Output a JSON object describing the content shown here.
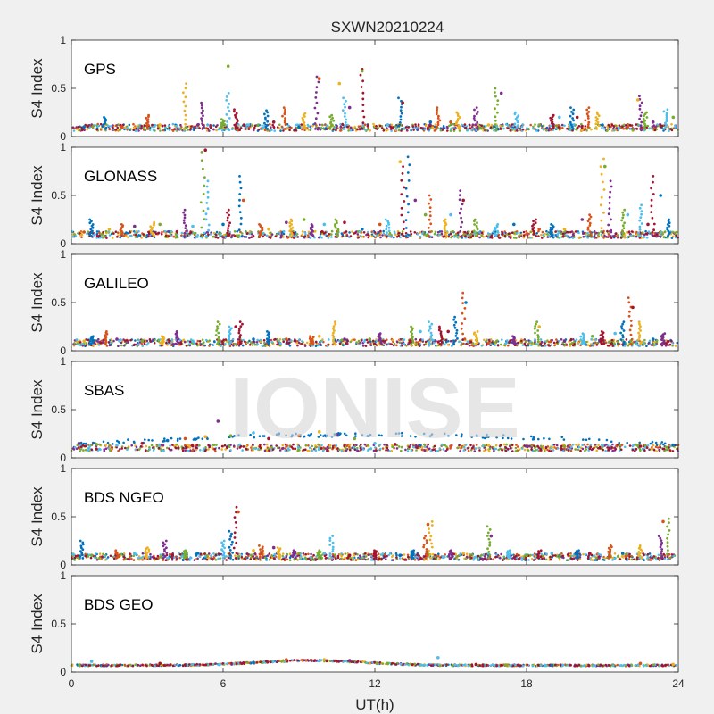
{
  "chart_data": {
    "type": "scatter",
    "title": "SXWN20210224",
    "xlabel": "UT(h)",
    "ylabel": "S4 Index",
    "xlim": [
      0,
      24
    ],
    "ylim": [
      0,
      1
    ],
    "xticks": [
      0,
      6,
      12,
      18,
      24
    ],
    "yticks": [
      0,
      0.5,
      1
    ],
    "watermark": "IONISE",
    "series_colors": [
      "#0072BD",
      "#D95319",
      "#EDB120",
      "#7E2F8E",
      "#77AC30",
      "#4DBEEE",
      "#A2142F"
    ],
    "panels": [
      {
        "name": "GPS",
        "baseline": 0.08,
        "spikes": [
          [
            1.3,
            0.2
          ],
          [
            3.0,
            0.22
          ],
          [
            4.5,
            0.55
          ],
          [
            5.2,
            0.35
          ],
          [
            6.0,
            0.18
          ],
          [
            6.2,
            0.45
          ],
          [
            6.5,
            0.28
          ],
          [
            7.7,
            0.27
          ],
          [
            8.4,
            0.3
          ],
          [
            9.2,
            0.24
          ],
          [
            9.7,
            0.62
          ],
          [
            10.3,
            0.22
          ],
          [
            10.8,
            0.4
          ],
          [
            11.5,
            0.7
          ],
          [
            13.0,
            0.4
          ],
          [
            14.5,
            0.3
          ],
          [
            15.3,
            0.25
          ],
          [
            16.0,
            0.3
          ],
          [
            16.8,
            0.5
          ],
          [
            17.6,
            0.25
          ],
          [
            19.0,
            0.22
          ],
          [
            19.8,
            0.3
          ],
          [
            20.4,
            0.3
          ],
          [
            20.8,
            0.25
          ],
          [
            22.5,
            0.42
          ],
          [
            22.7,
            0.25
          ],
          [
            23.5,
            0.28
          ]
        ],
        "points": [
          [
            0.5,
            0.1
          ],
          [
            2.0,
            0.1
          ],
          [
            3.5,
            0.12
          ],
          [
            5.0,
            0.12
          ],
          [
            6.2,
            0.73
          ],
          [
            7.0,
            0.12
          ],
          [
            8.0,
            0.15
          ],
          [
            9.0,
            0.1
          ],
          [
            9.8,
            0.6
          ],
          [
            10.6,
            0.55
          ],
          [
            11.0,
            0.3
          ],
          [
            11.5,
            0.68
          ],
          [
            12.5,
            0.12
          ],
          [
            13.1,
            0.35
          ],
          [
            14.2,
            0.15
          ],
          [
            15.0,
            0.15
          ],
          [
            16.5,
            0.12
          ],
          [
            17.0,
            0.45
          ],
          [
            18.5,
            0.12
          ],
          [
            19.3,
            0.2
          ],
          [
            20.0,
            0.2
          ],
          [
            21.0,
            0.12
          ],
          [
            22.0,
            0.1
          ],
          [
            22.4,
            0.38
          ],
          [
            23.0,
            0.15
          ],
          [
            23.8,
            0.2
          ]
        ]
      },
      {
        "name": "GLONASS",
        "baseline": 0.08,
        "spikes": [
          [
            0.8,
            0.25
          ],
          [
            2.0,
            0.2
          ],
          [
            3.2,
            0.22
          ],
          [
            4.5,
            0.35
          ],
          [
            5.2,
            0.95
          ],
          [
            5.4,
            0.65
          ],
          [
            6.2,
            0.35
          ],
          [
            6.7,
            0.7
          ],
          [
            7.5,
            0.2
          ],
          [
            8.7,
            0.25
          ],
          [
            9.5,
            0.2
          ],
          [
            10.5,
            0.25
          ],
          [
            12.5,
            0.25
          ],
          [
            13.1,
            0.8
          ],
          [
            13.3,
            0.9
          ],
          [
            14.2,
            0.5
          ],
          [
            14.8,
            0.25
          ],
          [
            15.4,
            0.55
          ],
          [
            16.0,
            0.25
          ],
          [
            16.8,
            0.2
          ],
          [
            18.3,
            0.25
          ],
          [
            19.0,
            0.2
          ],
          [
            20.5,
            0.3
          ],
          [
            21.0,
            0.88
          ],
          [
            21.3,
            0.65
          ],
          [
            21.8,
            0.35
          ],
          [
            22.5,
            0.4
          ],
          [
            23.0,
            0.7
          ],
          [
            23.6,
            0.25
          ]
        ],
        "points": [
          [
            0.5,
            0.12
          ],
          [
            1.5,
            0.15
          ],
          [
            2.5,
            0.18
          ],
          [
            3.5,
            0.2
          ],
          [
            4.8,
            0.18
          ],
          [
            5.3,
            0.97
          ],
          [
            6.0,
            0.2
          ],
          [
            6.8,
            0.45
          ],
          [
            7.8,
            0.15
          ],
          [
            8.5,
            0.22
          ],
          [
            9.2,
            0.25
          ],
          [
            10.0,
            0.2
          ],
          [
            10.8,
            0.22
          ],
          [
            11.5,
            0.15
          ],
          [
            12.2,
            0.2
          ],
          [
            13.0,
            0.85
          ],
          [
            13.6,
            0.45
          ],
          [
            14.0,
            0.3
          ],
          [
            15.0,
            0.3
          ],
          [
            15.5,
            0.45
          ],
          [
            17.5,
            0.2
          ],
          [
            18.5,
            0.15
          ],
          [
            19.5,
            0.15
          ],
          [
            20.2,
            0.25
          ],
          [
            21.1,
            0.8
          ],
          [
            22.0,
            0.3
          ],
          [
            22.8,
            0.2
          ],
          [
            23.3,
            0.5
          ]
        ]
      },
      {
        "name": "GALILEO",
        "baseline": 0.07,
        "spikes": [
          [
            0.8,
            0.15
          ],
          [
            1.4,
            0.2
          ],
          [
            3.6,
            0.15
          ],
          [
            4.2,
            0.2
          ],
          [
            5.8,
            0.3
          ],
          [
            6.3,
            0.25
          ],
          [
            6.7,
            0.3
          ],
          [
            7.8,
            0.2
          ],
          [
            9.5,
            0.15
          ],
          [
            10.4,
            0.3
          ],
          [
            12.2,
            0.18
          ],
          [
            13.5,
            0.25
          ],
          [
            14.2,
            0.3
          ],
          [
            14.6,
            0.25
          ],
          [
            15.2,
            0.35
          ],
          [
            15.5,
            0.6
          ],
          [
            16.0,
            0.2
          ],
          [
            17.5,
            0.15
          ],
          [
            18.4,
            0.3
          ],
          [
            20.2,
            0.18
          ],
          [
            21.0,
            0.2
          ],
          [
            21.8,
            0.3
          ],
          [
            22.1,
            0.55
          ],
          [
            22.5,
            0.3
          ],
          [
            23.4,
            0.18
          ]
        ],
        "points": [
          [
            0.5,
            0.1
          ],
          [
            1.8,
            0.12
          ],
          [
            2.8,
            0.1
          ],
          [
            4.8,
            0.1
          ],
          [
            6.5,
            0.25
          ],
          [
            7.2,
            0.12
          ],
          [
            8.5,
            0.12
          ],
          [
            9.8,
            0.15
          ],
          [
            10.8,
            0.12
          ],
          [
            11.8,
            0.12
          ],
          [
            13.8,
            0.2
          ],
          [
            14.9,
            0.2
          ],
          [
            15.6,
            0.5
          ],
          [
            16.5,
            0.08
          ],
          [
            18.5,
            0.25
          ],
          [
            19.5,
            0.1
          ],
          [
            20.6,
            0.15
          ],
          [
            21.5,
            0.18
          ],
          [
            22.2,
            0.45
          ],
          [
            23.0,
            0.12
          ]
        ]
      },
      {
        "name": "SBAS",
        "baseline": 0.09,
        "spikes": [],
        "points": [
          [
            0.3,
            0.15
          ],
          [
            1.0,
            0.14
          ],
          [
            1.8,
            0.13
          ],
          [
            2.8,
            0.15
          ],
          [
            3.8,
            0.18
          ],
          [
            4.5,
            0.2
          ],
          [
            5.3,
            0.22
          ],
          [
            5.8,
            0.38
          ],
          [
            6.3,
            0.23
          ],
          [
            7.2,
            0.26
          ],
          [
            7.8,
            0.2
          ],
          [
            8.2,
            0.25
          ],
          [
            9.0,
            0.23
          ],
          [
            9.8,
            0.27
          ],
          [
            10.5,
            0.24
          ],
          [
            11.2,
            0.2
          ],
          [
            12.0,
            0.15
          ],
          [
            12.8,
            0.14
          ],
          [
            13.8,
            0.13
          ],
          [
            15.0,
            0.12
          ],
          [
            16.5,
            0.13
          ],
          [
            18.0,
            0.12
          ],
          [
            19.5,
            0.12
          ],
          [
            21.0,
            0.13
          ],
          [
            22.5,
            0.12
          ],
          [
            23.8,
            0.13
          ]
        ]
      },
      {
        "name": "BDS NGEO",
        "baseline": 0.07,
        "spikes": [
          [
            0.4,
            0.25
          ],
          [
            1.8,
            0.15
          ],
          [
            3.0,
            0.18
          ],
          [
            3.7,
            0.25
          ],
          [
            4.5,
            0.15
          ],
          [
            6.0,
            0.25
          ],
          [
            6.5,
            0.6
          ],
          [
            6.3,
            0.35
          ],
          [
            7.5,
            0.2
          ],
          [
            8.2,
            0.18
          ],
          [
            8.8,
            0.15
          ],
          [
            9.8,
            0.15
          ],
          [
            10.3,
            0.3
          ],
          [
            12.0,
            0.15
          ],
          [
            13.5,
            0.15
          ],
          [
            14.0,
            0.3
          ],
          [
            14.2,
            0.45
          ],
          [
            15.0,
            0.15
          ],
          [
            16.5,
            0.4
          ],
          [
            17.3,
            0.15
          ],
          [
            18.5,
            0.15
          ],
          [
            20.0,
            0.15
          ],
          [
            21.3,
            0.2
          ],
          [
            22.5,
            0.2
          ],
          [
            23.3,
            0.3
          ],
          [
            23.6,
            0.48
          ]
        ],
        "points": [
          [
            0.8,
            0.1
          ],
          [
            2.5,
            0.12
          ],
          [
            4.0,
            0.1
          ],
          [
            5.0,
            0.12
          ],
          [
            6.6,
            0.55
          ],
          [
            7.2,
            0.15
          ],
          [
            8.0,
            0.18
          ],
          [
            9.0,
            0.12
          ],
          [
            10.0,
            0.12
          ],
          [
            11.0,
            0.1
          ],
          [
            13.0,
            0.1
          ],
          [
            14.1,
            0.42
          ],
          [
            15.5,
            0.12
          ],
          [
            16.6,
            0.3
          ],
          [
            18.0,
            0.1
          ],
          [
            19.0,
            0.12
          ],
          [
            20.5,
            0.12
          ],
          [
            21.8,
            0.12
          ],
          [
            23.4,
            0.45
          ]
        ]
      },
      {
        "name": "BDS GEO",
        "baseline": 0.07,
        "spikes": [],
        "points": [
          [
            0.8,
            0.11
          ],
          [
            3.5,
            0.09
          ],
          [
            7.2,
            0.1
          ],
          [
            8.5,
            0.13
          ],
          [
            10.0,
            0.13
          ],
          [
            11.0,
            0.12
          ],
          [
            12.5,
            0.09
          ],
          [
            14.5,
            0.15
          ],
          [
            16.0,
            0.08
          ],
          [
            19.0,
            0.07
          ],
          [
            22.5,
            0.09
          ],
          [
            23.8,
            0.08
          ]
        ]
      }
    ]
  }
}
